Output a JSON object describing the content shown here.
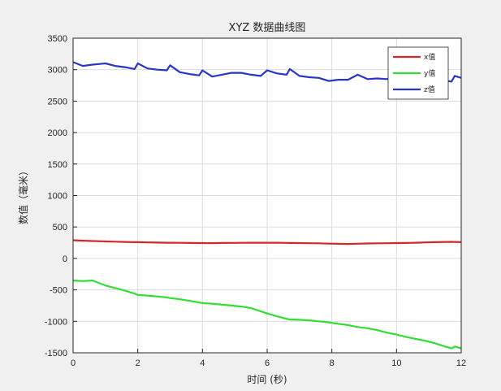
{
  "chart_data": {
    "type": "line",
    "title": "XYZ 数据曲线图",
    "xlabel": "时间 (秒)",
    "ylabel": "数值（毫米）",
    "xlim": [
      0,
      12
    ],
    "ylim": [
      -1500,
      3500
    ],
    "xticks": [
      0,
      2,
      4,
      6,
      8,
      10,
      12
    ],
    "yticks": [
      -1500,
      -1000,
      -500,
      0,
      500,
      1000,
      1500,
      2000,
      2500,
      3000,
      3500
    ],
    "xtick_labels": [
      "0",
      "2",
      "4",
      "6",
      "8",
      "10",
      "12"
    ],
    "ytick_labels": [
      "-1500",
      "-1000",
      "-500",
      "0",
      "500",
      "1000",
      "1500",
      "2000",
      "2500",
      "3000",
      "3500"
    ],
    "grid": true,
    "legend_position": "top-right",
    "x": [
      0,
      0.3,
      0.6,
      1,
      1.3,
      1.6,
      1.9,
      2.0,
      2.3,
      2.6,
      2.9,
      3.0,
      3.3,
      3.6,
      3.9,
      4.0,
      4.3,
      4.6,
      4.9,
      5.2,
      5.5,
      5.8,
      6.0,
      6.3,
      6.6,
      6.7,
      7.0,
      7.3,
      7.6,
      7.9,
      8.2,
      8.5,
      8.8,
      9.1,
      9.4,
      9.7,
      10.0,
      10.3,
      10.6,
      10.9,
      11.2,
      11.5,
      11.7,
      11.8,
      12.0
    ],
    "series": [
      {
        "name": "x值",
        "color": "#d62728",
        "values": [
          290,
          282,
          276,
          270,
          266,
          262,
          258,
          258,
          255,
          252,
          250,
          250,
          248,
          246,
          244,
          244,
          243,
          245,
          247,
          248,
          249,
          250,
          250,
          249,
          247,
          246,
          244,
          242,
          240,
          235,
          232,
          230,
          234,
          238,
          240,
          242,
          244,
          246,
          250,
          254,
          258,
          262,
          264,
          262,
          258
        ]
      },
      {
        "name": "y值",
        "color": "#33dd33",
        "values": [
          -350,
          -360,
          -350,
          -430,
          -470,
          -510,
          -560,
          -580,
          -590,
          -605,
          -620,
          -630,
          -650,
          -675,
          -700,
          -710,
          -720,
          -735,
          -750,
          -765,
          -790,
          -840,
          -875,
          -920,
          -960,
          -970,
          -975,
          -985,
          -1000,
          -1015,
          -1040,
          -1060,
          -1090,
          -1110,
          -1140,
          -1180,
          -1210,
          -1250,
          -1280,
          -1310,
          -1350,
          -1400,
          -1430,
          -1400,
          -1430
        ]
      },
      {
        "name": "z值",
        "color": "#2a35c8",
        "values": [
          3120,
          3060,
          3080,
          3100,
          3060,
          3040,
          3010,
          3100,
          3020,
          3000,
          2990,
          3070,
          2960,
          2930,
          2910,
          2990,
          2890,
          2920,
          2950,
          2950,
          2920,
          2900,
          2990,
          2940,
          2920,
          3010,
          2900,
          2880,
          2870,
          2820,
          2840,
          2840,
          2920,
          2850,
          2860,
          2850,
          2900,
          2860,
          2850,
          2840,
          2850,
          2830,
          2810,
          2900,
          2870
        ]
      }
    ]
  }
}
